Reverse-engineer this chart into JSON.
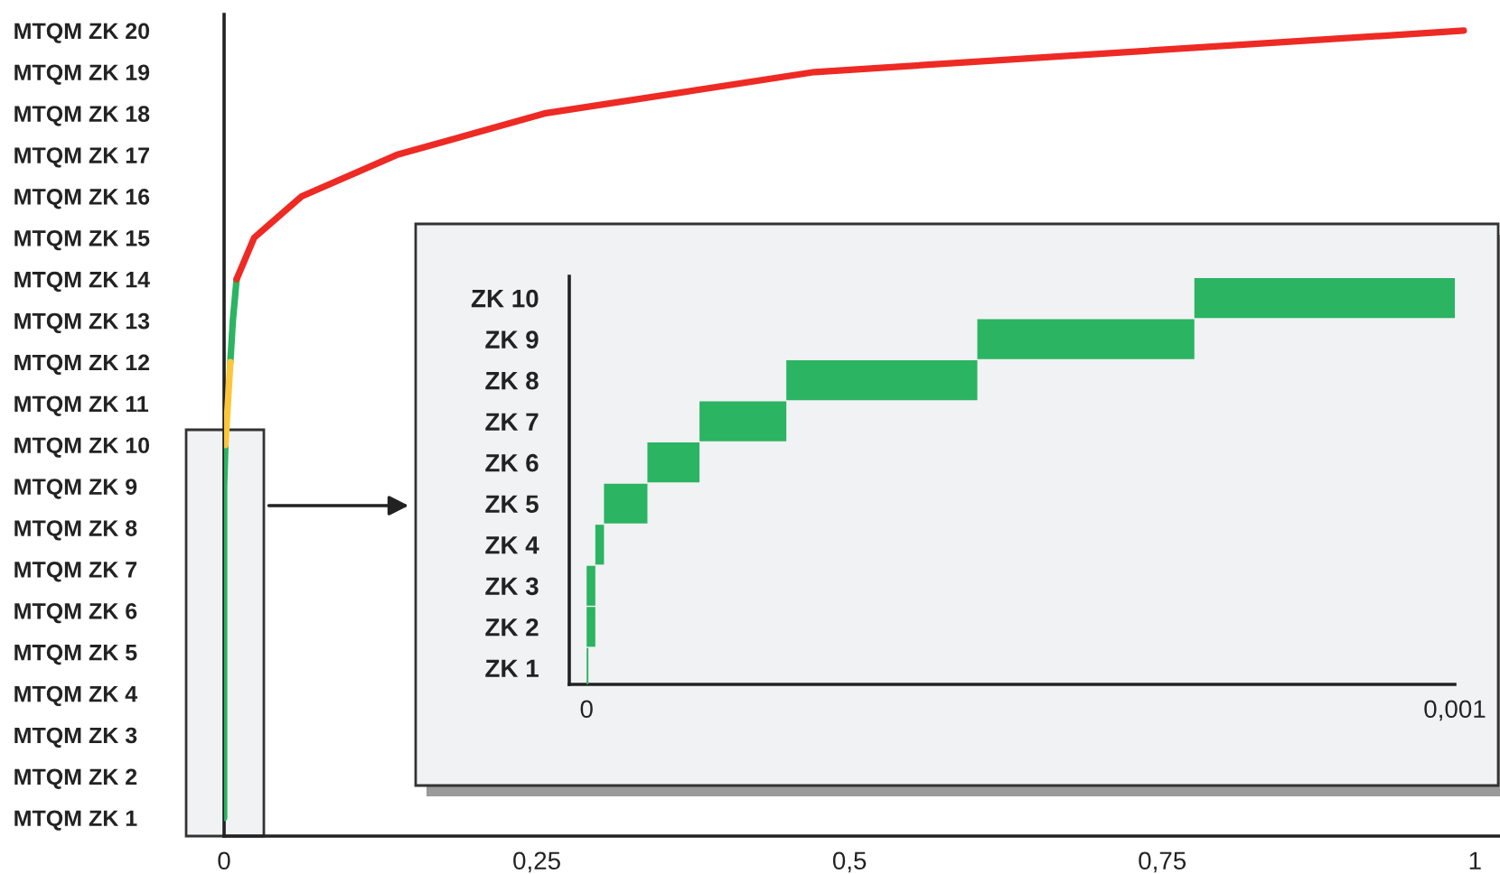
{
  "chart_data": [
    {
      "type": "line",
      "orientation": "horizontal",
      "categories": [
        "MTQM ZK 20",
        "MTQM ZK 19",
        "MTQM ZK 18",
        "MTQM ZK 17",
        "MTQM ZK 16",
        "MTQM ZK 15",
        "MTQM ZK 14",
        "MTQM ZK 13",
        "MTQM ZK 12",
        "MTQM ZK 11",
        "MTQM ZK 10",
        "MTQM ZK 9",
        "MTQM ZK 8",
        "MTQM ZK 7",
        "MTQM ZK 6",
        "MTQM ZK 5",
        "MTQM ZK 4",
        "MTQM ZK 3",
        "MTQM ZK 2",
        "MTQM ZK 1"
      ],
      "series": [
        {
          "color": "#2bb461",
          "values": [
            null,
            null,
            null,
            null,
            null,
            null,
            0.01,
            0.007,
            0.005,
            null,
            0.001,
            0.0,
            0.0,
            0.0,
            0.0,
            0.0,
            0.0,
            0.0,
            0.0,
            0.0
          ]
        },
        {
          "color": "#fcc63a",
          "values": [
            null,
            null,
            null,
            null,
            null,
            null,
            null,
            null,
            0.005,
            0.003,
            0.001,
            null,
            null,
            null,
            null,
            null,
            null,
            null,
            null,
            null
          ]
        },
        {
          "color": "#ee2a24",
          "values": [
            0.991,
            0.472,
            0.256,
            0.138,
            0.062,
            0.024,
            0.01,
            null,
            null,
            null,
            null,
            null,
            null,
            null,
            null,
            null,
            null,
            null,
            null,
            null
          ]
        }
      ],
      "xlim": [
        0,
        1.02
      ],
      "xticks": [
        0,
        {
          "value": 0.25,
          "label": "0,25"
        },
        {
          "value": 0.5,
          "label": "0,5"
        },
        {
          "value": 0.75,
          "label": "0,75"
        },
        1
      ],
      "grid": false,
      "legend": false,
      "marker": "none",
      "line_style": "solid"
    },
    {
      "type": "bar",
      "orientation": "horizontal",
      "categories": [
        "ZK 10",
        "ZK 9",
        "ZK 8",
        "ZK 7",
        "ZK 6",
        "ZK 5",
        "ZK 4",
        "ZK 3",
        "ZK 2",
        "ZK 1"
      ],
      "base": [
        0.0007,
        0.00045,
        0.00023,
        0.00013,
        7e-05,
        2e-05,
        1e-05,
        0.0,
        0.0,
        0.0
      ],
      "values": [
        0.0003,
        0.00025,
        0.00022,
        0.0001,
        6e-05,
        5e-05,
        1e-05,
        1e-05,
        1e-05,
        2e-06
      ],
      "color": "#2bb461",
      "xlim": [
        -2e-05,
        0.001
      ],
      "xticks": [
        0,
        {
          "value": 0.001,
          "label": "0,001"
        }
      ],
      "grid": false,
      "legend": false
    }
  ]
}
